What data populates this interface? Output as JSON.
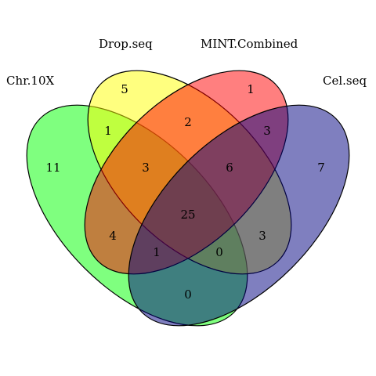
{
  "sets": [
    {
      "label": "Chr.10X",
      "color": "#00FF00"
    },
    {
      "label": "Drop.seq",
      "color": "#FFFF00"
    },
    {
      "label": "MINT.Combined",
      "color": "#FF0000"
    },
    {
      "label": "Cel.seq",
      "color": "#000080"
    }
  ],
  "regions": {
    "only_chr10x": "11",
    "only_dropseq": "5",
    "only_mint": "1",
    "only_celseq": "7",
    "chr10x_dropseq": "1",
    "dropseq_mint": "2",
    "mint_celseq": "3",
    "chr10x_dropseq_mint": "3",
    "dropseq_mint_celseq": "6",
    "all_four": "25",
    "chr10x_mint": "4",
    "dropseq_celseq": "3",
    "chr10x_mint_celseq": "1",
    "chr10x_dropseq_celseq": "0",
    "chr10x_celseq": "0"
  },
  "colors": {
    "outline": "#000000",
    "background": "#FFFFFF"
  }
}
